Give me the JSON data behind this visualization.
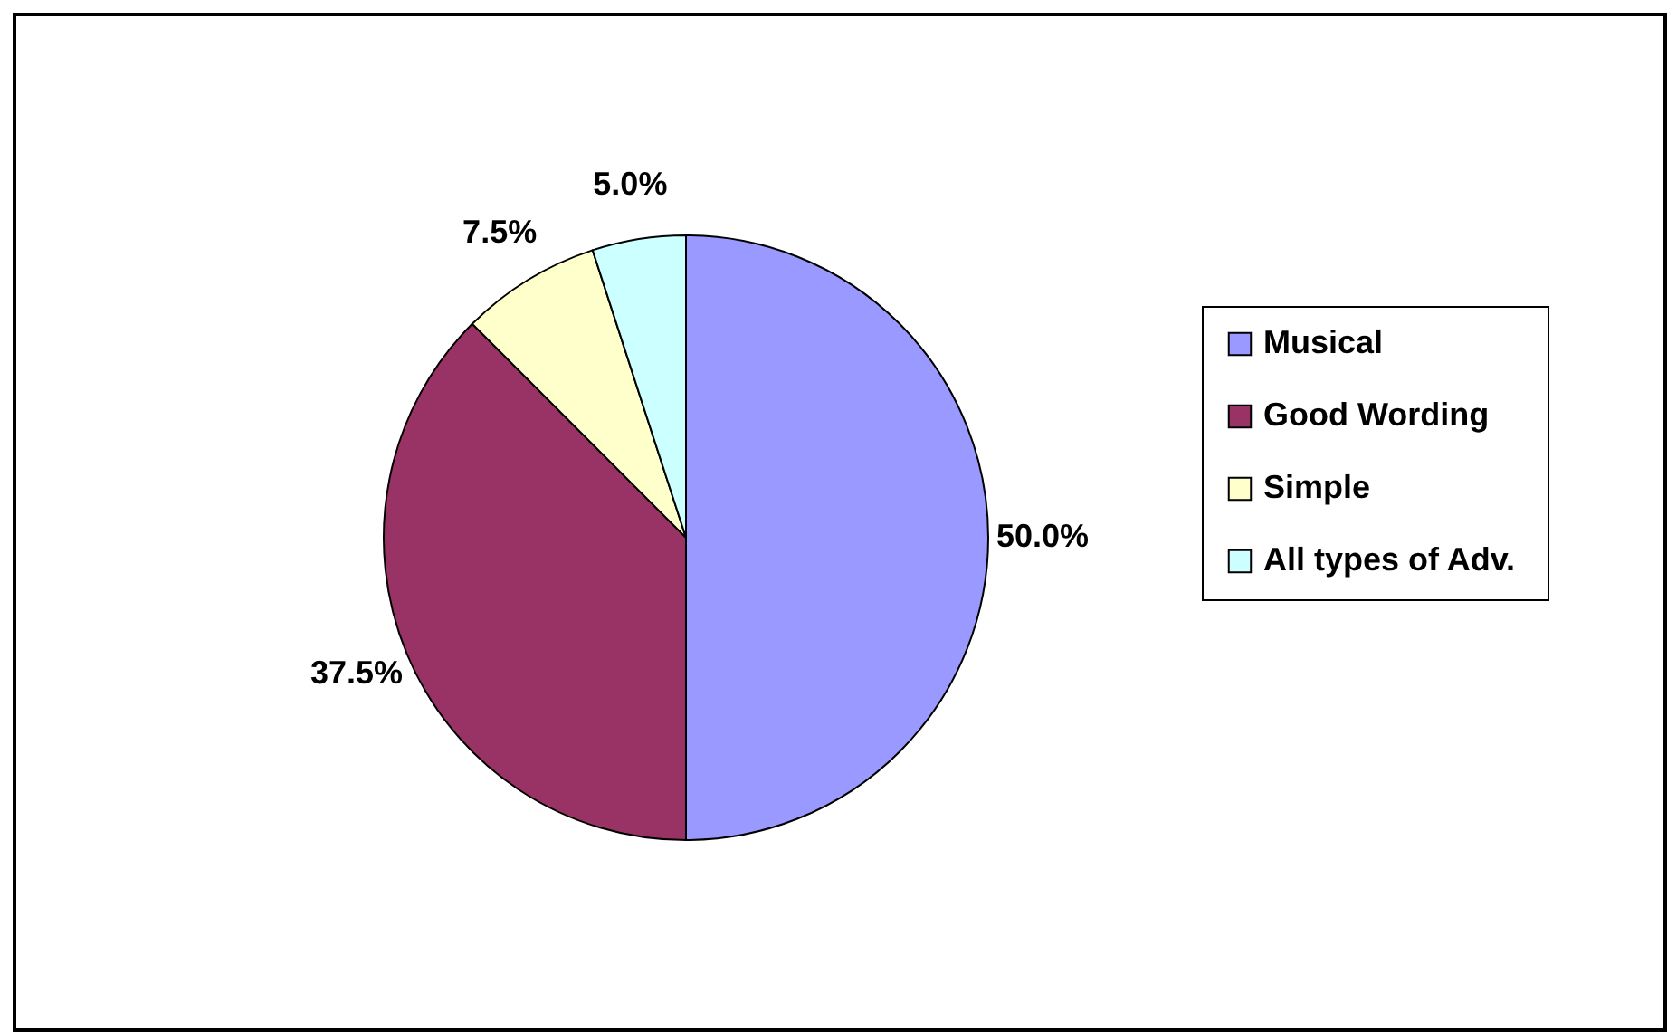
{
  "chart_data": {
    "type": "pie",
    "categories": [
      "Musical",
      "Good Wording",
      "Simple",
      "All types of  Adv."
    ],
    "values": [
      50,
      37.5,
      7.5,
      5
    ],
    "value_labels": [
      "50.0%",
      "37.5%",
      "7.5%",
      "5.0%"
    ],
    "colors": [
      "#9999ff",
      "#993366",
      "#ffffcc",
      "#ccffff"
    ],
    "legend": "right"
  }
}
